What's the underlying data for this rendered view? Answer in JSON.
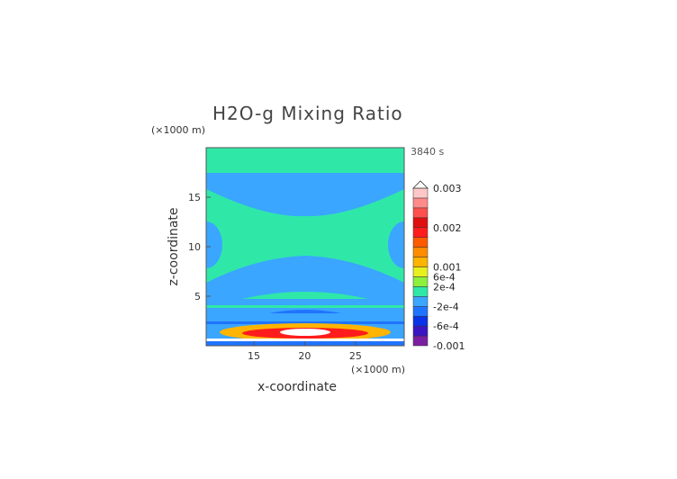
{
  "chart_data": {
    "type": "heatmap",
    "title": "H2O-g Mixing Ratio",
    "time_label": "3840 s",
    "xlabel": "x-coordinate",
    "ylabel": "z-coordinate",
    "x_unit": "(×1000 m)",
    "y_unit": "(×1000 m)",
    "xlim": [
      10.3,
      29.8
    ],
    "ylim": [
      0,
      20
    ],
    "x_ticks": [
      {
        "value": 15,
        "label": "15"
      },
      {
        "value": 20,
        "label": "20"
      },
      {
        "value": 25,
        "label": "25"
      }
    ],
    "y_ticks": [
      {
        "value": 5,
        "label": "5"
      },
      {
        "value": 10,
        "label": "10"
      },
      {
        "value": 15,
        "label": "15"
      }
    ],
    "colorbar": {
      "levels": [
        "#7a1fa2",
        "#3a16c2",
        "#0a32e6",
        "#1f74ff",
        "#3aa6ff",
        "#2fe8a8",
        "#8cf03c",
        "#e8f020",
        "#ffb400",
        "#ff8c00",
        "#ff5a00",
        "#ff1c1c",
        "#e01010",
        "#ff5050",
        "#ff8a8a",
        "#ffc8c8"
      ],
      "labels": [
        {
          "text": "0.003",
          "level": 16
        },
        {
          "text": "0.002",
          "level": 12
        },
        {
          "text": "0.001",
          "level": 8
        },
        {
          "text": "6e-4",
          "level": 7
        },
        {
          "text": "2e-4",
          "level": 6
        },
        {
          "text": "-2e-4",
          "level": 4
        },
        {
          "text": "-6e-4",
          "level": 2
        },
        {
          "text": "-0.001",
          "level": 0
        }
      ]
    },
    "field_colors": {
      "background": "#2fe8a8",
      "negative": "#3aa6ff",
      "strong_negative": "#1f74ff",
      "hot": "#ff1c1c",
      "warm": "#ffb400",
      "core": "#ffffff"
    }
  }
}
